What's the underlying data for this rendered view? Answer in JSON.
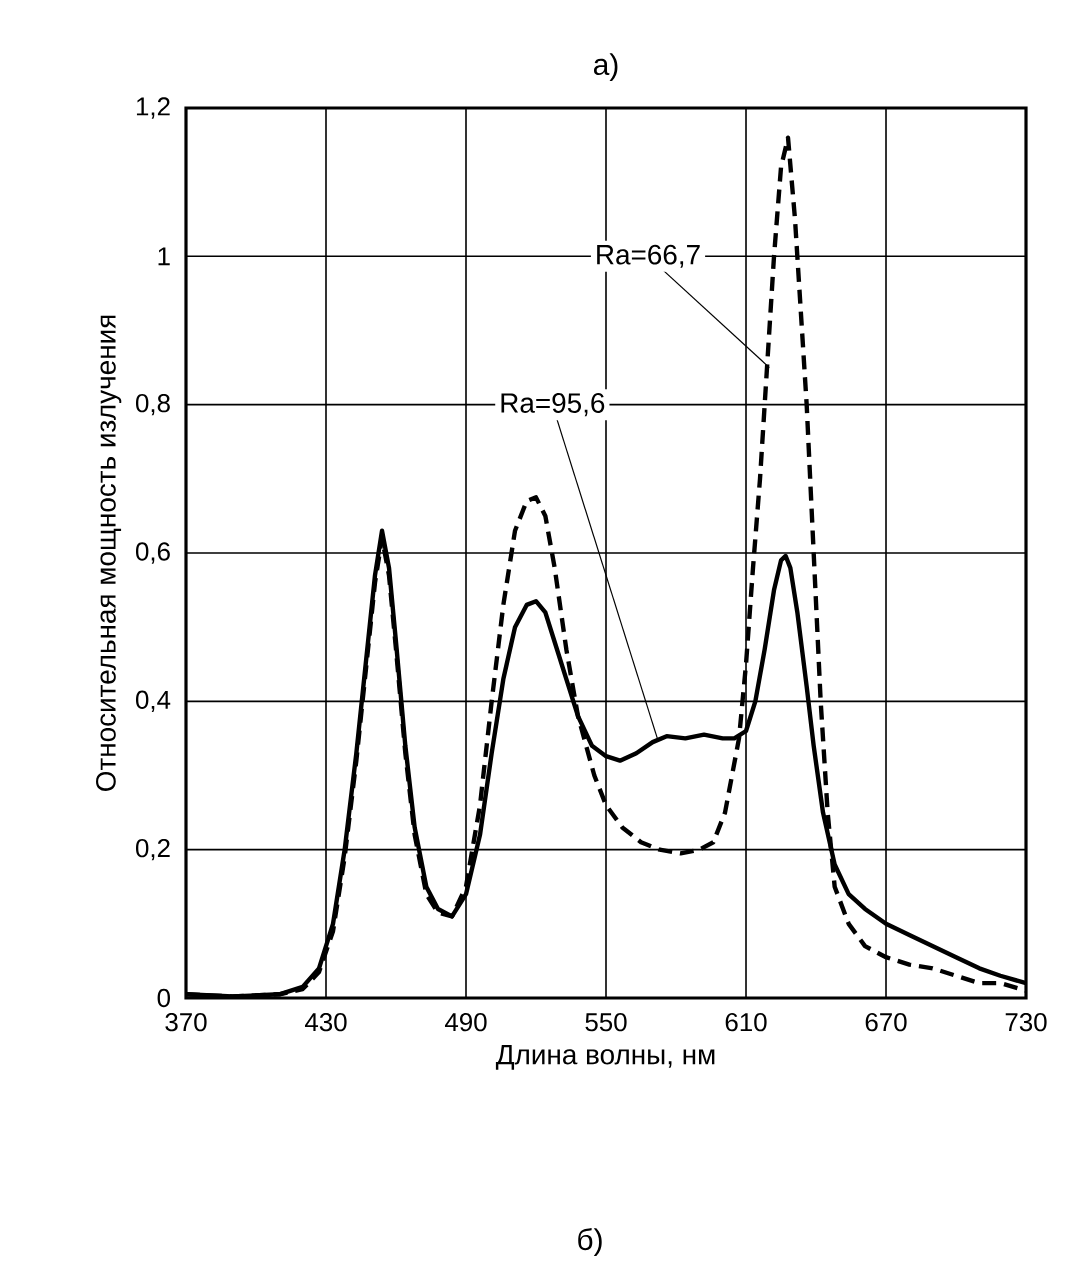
{
  "chart_data": {
    "type": "line",
    "title": "а)",
    "xlabel": "Длина волны, нм",
    "ylabel": "Относительная мощность излучения",
    "xlim": [
      370,
      730
    ],
    "ylim": [
      0,
      1.2
    ],
    "xticks": [
      370,
      430,
      490,
      550,
      610,
      670,
      730
    ],
    "yticks": [
      0,
      {
        "value": 0.2,
        "label": "0,2"
      },
      {
        "value": 0.4,
        "label": "0,4"
      },
      {
        "value": 0.6,
        "label": "0,6"
      },
      {
        "value": 0.8,
        "label": "0,8"
      },
      1,
      {
        "value": 1.2,
        "label": "1,2"
      }
    ],
    "grid": true,
    "series": [
      {
        "color": "#000000",
        "line_style": "solid",
        "x": [
          370,
          390,
          410,
          420,
          427,
          433,
          438,
          443,
          447,
          451,
          454,
          457,
          460,
          464,
          468,
          473,
          478,
          484,
          490,
          496,
          501,
          506,
          511,
          516,
          520,
          524,
          528,
          533,
          538,
          544,
          550,
          556,
          563,
          570,
          576,
          584,
          592,
          600,
          605,
          610,
          614,
          618,
          622,
          625,
          627,
          629,
          632,
          636,
          639,
          643,
          648,
          654,
          661,
          670,
          680,
          690,
          700,
          710,
          719,
          730
        ],
        "values": [
          0.005,
          0.002,
          0.005,
          0.015,
          0.04,
          0.1,
          0.2,
          0.33,
          0.45,
          0.57,
          0.63,
          0.58,
          0.48,
          0.34,
          0.23,
          0.15,
          0.12,
          0.11,
          0.14,
          0.22,
          0.33,
          0.43,
          0.5,
          0.53,
          0.535,
          0.52,
          0.48,
          0.43,
          0.38,
          0.34,
          0.326,
          0.32,
          0.33,
          0.345,
          0.353,
          0.35,
          0.355,
          0.35,
          0.35,
          0.36,
          0.4,
          0.47,
          0.55,
          0.59,
          0.596,
          0.58,
          0.52,
          0.42,
          0.34,
          0.25,
          0.18,
          0.14,
          0.12,
          0.1,
          0.085,
          0.07,
          0.055,
          0.04,
          0.03,
          0.02
        ]
      },
      {
        "color": "#000000",
        "line_style": "dashed",
        "x": [
          370,
          390,
          410,
          420,
          427,
          433,
          438,
          443,
          447,
          451,
          454,
          457,
          460,
          464,
          468,
          473,
          478,
          484,
          490,
          496,
          501,
          506,
          511,
          516,
          520,
          524,
          528,
          533,
          538,
          545,
          550,
          557,
          565,
          573,
          582,
          590,
          596,
          601,
          604,
          607,
          610,
          613,
          616,
          619,
          622,
          625,
          628,
          631,
          634,
          636,
          639,
          642,
          645,
          648,
          654,
          661,
          670,
          680,
          690,
          700,
          710,
          719,
          730
        ],
        "values": [
          0.005,
          0.002,
          0.005,
          0.012,
          0.035,
          0.09,
          0.19,
          0.32,
          0.44,
          0.56,
          0.62,
          0.57,
          0.47,
          0.33,
          0.22,
          0.14,
          0.115,
          0.11,
          0.15,
          0.26,
          0.4,
          0.53,
          0.63,
          0.67,
          0.675,
          0.65,
          0.58,
          0.47,
          0.38,
          0.3,
          0.26,
          0.23,
          0.21,
          0.2,
          0.195,
          0.2,
          0.21,
          0.25,
          0.3,
          0.35,
          0.45,
          0.58,
          0.7,
          0.85,
          1.0,
          1.12,
          1.16,
          1.05,
          0.9,
          0.8,
          0.6,
          0.4,
          0.25,
          0.15,
          0.1,
          0.07,
          0.055,
          0.045,
          0.04,
          0.03,
          0.02,
          0.02,
          0.01
        ]
      }
    ],
    "annotations": [
      {
        "text": "Ra=66,7",
        "x": 620,
        "y": 0.85
      },
      {
        "text": "Ra=95,6",
        "x": 572,
        "y": 0.35
      },
      "б)"
    ]
  }
}
